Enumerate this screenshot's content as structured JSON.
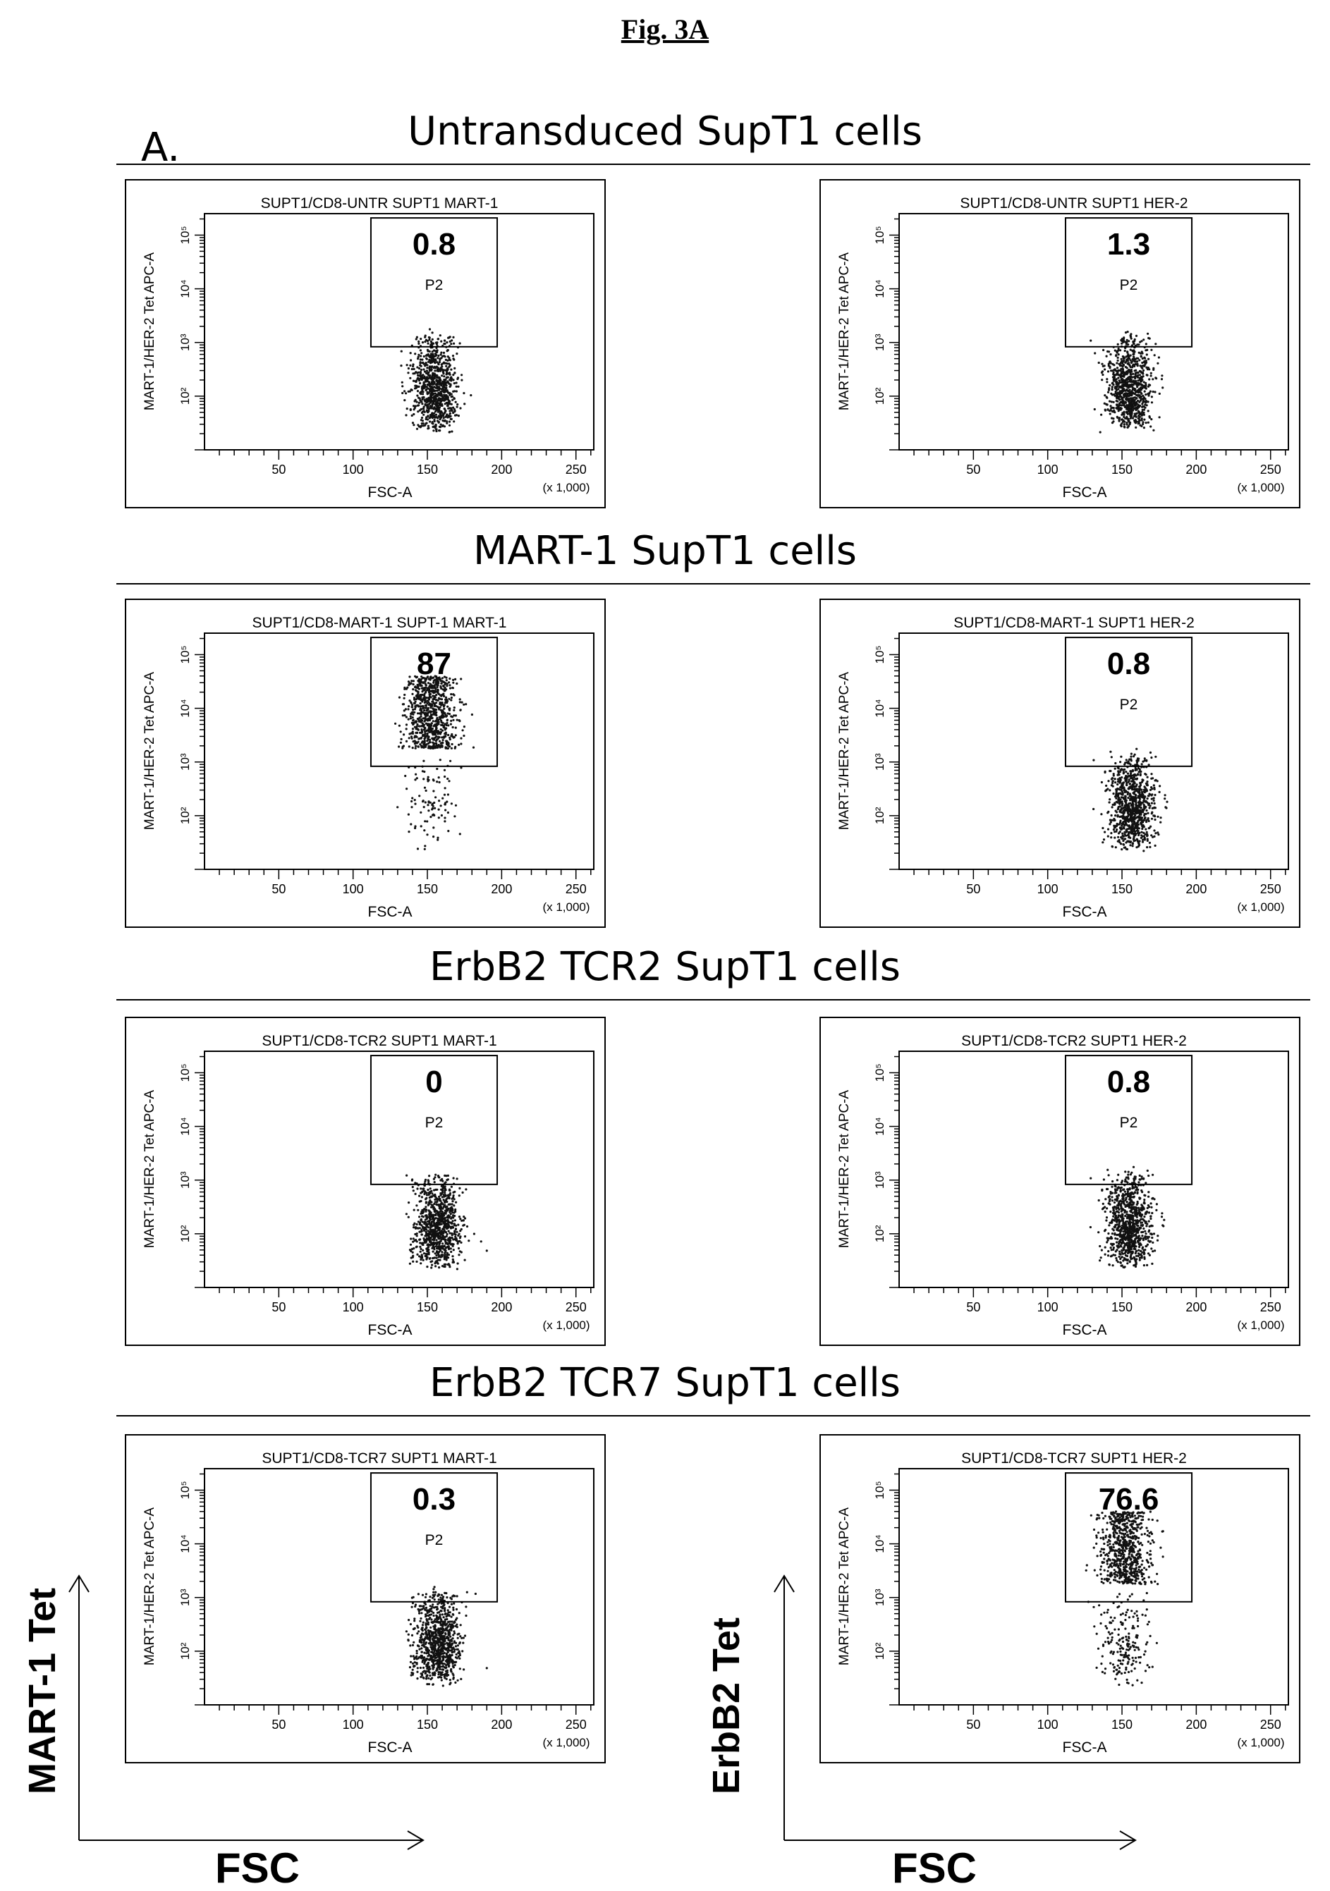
{
  "figure": {
    "title": "Fig. 3A",
    "panel_label": "A.",
    "bottom_left": {
      "y_label": "MART-1 Tet",
      "x_label": "FSC"
    },
    "bottom_right": {
      "y_label": "ErbB2 Tet",
      "x_label": "FSC"
    }
  },
  "rows": [
    {
      "title": "Untransduced SupT1 cells"
    },
    {
      "title": "MART-1 SupT1 cells"
    },
    {
      "title": "ErbB2 TCR2 SupT1 cells"
    },
    {
      "title": "ErbB2 TCR7 SupT1 cells"
    }
  ],
  "chart_data": [
    {
      "type": "scatter",
      "title": "SUPT1/CD8-UNTR SUPT1 MART-1",
      "xlabel": "FSC-A",
      "ylabel": "MART-1/HER-2 Tet APC-A",
      "x_unit": "(x 1,000)",
      "x_ticks": [
        "50",
        "100",
        "150",
        "200",
        "250"
      ],
      "y_ticks": [
        "10²",
        "10³",
        "10⁴",
        "10⁵"
      ],
      "gate_name": "P2",
      "gate_percent": "0.8",
      "cluster": {
        "x_center": 155,
        "x_spread": 14,
        "y_low": 1.3,
        "y_high": 3.0,
        "pos_fraction": 0.008
      }
    },
    {
      "type": "scatter",
      "title": "SUPT1/CD8-UNTR SUPT1 HER-2",
      "xlabel": "FSC-A",
      "ylabel": "MART-1/HER-2 Tet APC-A",
      "x_unit": "(x 1,000)",
      "x_ticks": [
        "50",
        "100",
        "150",
        "200",
        "250"
      ],
      "y_ticks": [
        "10²",
        "10³",
        "10⁴",
        "10⁵"
      ],
      "gate_name": "P2",
      "gate_percent": "1.3",
      "cluster": {
        "x_center": 155,
        "x_spread": 14,
        "y_low": 1.3,
        "y_high": 3.0,
        "pos_fraction": 0.013
      }
    },
    {
      "type": "scatter",
      "title": "SUPT1/CD8-MART-1 SUPT-1 MART-1",
      "xlabel": "FSC-A",
      "ylabel": "MART-1/HER-2 Tet APC-A",
      "x_unit": "(x 1,000)",
      "x_ticks": [
        "50",
        "100",
        "150",
        "200",
        "250"
      ],
      "y_ticks": [
        "10²",
        "10³",
        "10⁴",
        "10⁵"
      ],
      "gate_name": "",
      "gate_percent": "87",
      "cluster": {
        "x_center": 152,
        "x_spread": 16,
        "y_low": 1.3,
        "y_high": 4.6,
        "pos_fraction": 0.87
      }
    },
    {
      "type": "scatter",
      "title": "SUPT1/CD8-MART-1 SUPT1 HER-2",
      "xlabel": "FSC-A",
      "ylabel": "MART-1/HER-2 Tet APC-A",
      "x_unit": "(x 1,000)",
      "x_ticks": [
        "50",
        "100",
        "150",
        "200",
        "250"
      ],
      "y_ticks": [
        "10²",
        "10³",
        "10⁴",
        "10⁵"
      ],
      "gate_name": "P2",
      "gate_percent": "0.8",
      "cluster": {
        "x_center": 157,
        "x_spread": 14,
        "y_low": 1.3,
        "y_high": 3.0,
        "pos_fraction": 0.008
      }
    },
    {
      "type": "scatter",
      "title": "SUPT1/CD8-TCR2 SUPT1 MART-1",
      "xlabel": "FSC-A",
      "ylabel": "MART-1/HER-2 Tet APC-A",
      "x_unit": "(x 1,000)",
      "x_ticks": [
        "50",
        "100",
        "150",
        "200",
        "250"
      ],
      "y_ticks": [
        "10²",
        "10³",
        "10⁴",
        "10⁵"
      ],
      "gate_name": "P2",
      "gate_percent": "0",
      "cluster": {
        "x_center": 157,
        "x_spread": 14,
        "y_low": 1.3,
        "y_high": 3.0,
        "pos_fraction": 0.0
      }
    },
    {
      "type": "scatter",
      "title": "SUPT1/CD8-TCR2 SUPT1 HER-2",
      "xlabel": "FSC-A",
      "ylabel": "MART-1/HER-2 Tet APC-A",
      "x_unit": "(x 1,000)",
      "x_ticks": [
        "50",
        "100",
        "150",
        "200",
        "250"
      ],
      "y_ticks": [
        "10²",
        "10³",
        "10⁴",
        "10⁵"
      ],
      "gate_name": "P2",
      "gate_percent": "0.8",
      "cluster": {
        "x_center": 155,
        "x_spread": 14,
        "y_low": 1.3,
        "y_high": 3.0,
        "pos_fraction": 0.008
      }
    },
    {
      "type": "scatter",
      "title": "SUPT1/CD8-TCR7 SUPT1 MART-1",
      "xlabel": "FSC-A",
      "ylabel": "MART-1/HER-2 Tet APC-A",
      "x_unit": "(x 1,000)",
      "x_ticks": [
        "50",
        "100",
        "150",
        "200",
        "250"
      ],
      "y_ticks": [
        "10²",
        "10³",
        "10⁴",
        "10⁵"
      ],
      "gate_name": "P2",
      "gate_percent": "0.3",
      "cluster": {
        "x_center": 157,
        "x_spread": 14,
        "y_low": 1.3,
        "y_high": 3.0,
        "pos_fraction": 0.003
      }
    },
    {
      "type": "scatter",
      "title": "SUPT1/CD8-TCR7 SUPT1 HER-2",
      "xlabel": "FSC-A",
      "ylabel": "MART-1/HER-2 Tet APC-A",
      "x_unit": "(x 1,000)",
      "x_ticks": [
        "50",
        "100",
        "150",
        "200",
        "250"
      ],
      "y_ticks": [
        "10²",
        "10³",
        "10⁴",
        "10⁵"
      ],
      "gate_name": "",
      "gate_percent": "76.6",
      "cluster": {
        "x_center": 152,
        "x_spread": 16,
        "y_low": 1.3,
        "y_high": 4.6,
        "pos_fraction": 0.766
      }
    }
  ]
}
